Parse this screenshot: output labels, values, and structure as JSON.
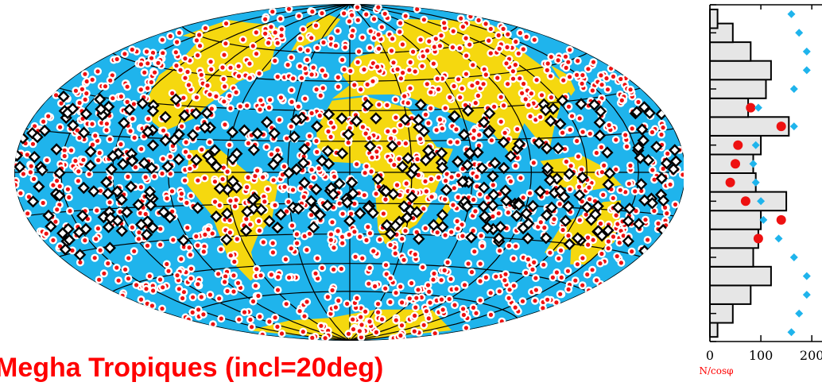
{
  "caption": "Megha Tropiques (incl=20deg)",
  "colors": {
    "ocean": "#1fb4ec",
    "land": "#f5d80f",
    "highlight_marker": "#000000",
    "red_marker": "#ee1111",
    "cyan_marker": "#1fb4ec",
    "bar_fill": "#e6e6e6"
  },
  "chart_data": [
    {
      "type": "scatter",
      "projection": "hammer-aitoff",
      "title": "",
      "series": [
        {
          "marker": "white-circle-red-dot"
        },
        {
          "marker": "black-diamond"
        }
      ],
      "gridlines": {
        "meridians_deg": [
          -180,
          -150,
          -120,
          -90,
          -60,
          -30,
          0,
          30,
          60,
          90,
          120,
          150,
          180
        ],
        "parallels_deg": [
          -60,
          -45,
          -30,
          -15,
          0,
          15,
          30,
          45,
          60
        ]
      }
    },
    {
      "type": "bar",
      "orientation": "horizontal",
      "xlabel": "N/cosφ",
      "xlim": [
        0,
        220
      ],
      "xticks": [
        "0",
        "100",
        "200"
      ],
      "ylim": [
        -90,
        90
      ],
      "bin_centers_deg": [
        -82.5,
        -75,
        -65,
        -55,
        -45,
        -35,
        -25,
        -15,
        -5,
        5,
        15,
        25,
        35,
        45,
        55,
        65,
        75,
        82.5
      ],
      "values": [
        15,
        45,
        80,
        120,
        85,
        95,
        100,
        150,
        90,
        85,
        100,
        155,
        75,
        110,
        120,
        80,
        45,
        15
      ],
      "red_points": {
        "lat": [
          -35,
          -25,
          -15,
          -5,
          5,
          15,
          25,
          35
        ],
        "value": [
          95,
          140,
          70,
          40,
          50,
          55,
          140,
          80
        ]
      },
      "cyan_points": {
        "lat": [
          -85,
          -75,
          -65,
          -55,
          -45,
          -35,
          -25,
          -15,
          -5,
          5,
          15,
          25,
          35,
          45,
          55,
          65,
          75,
          85
        ],
        "value": [
          160,
          175,
          190,
          190,
          165,
          135,
          105,
          100,
          90,
          85,
          90,
          165,
          95,
          165,
          190,
          190,
          175,
          160
        ]
      }
    }
  ]
}
